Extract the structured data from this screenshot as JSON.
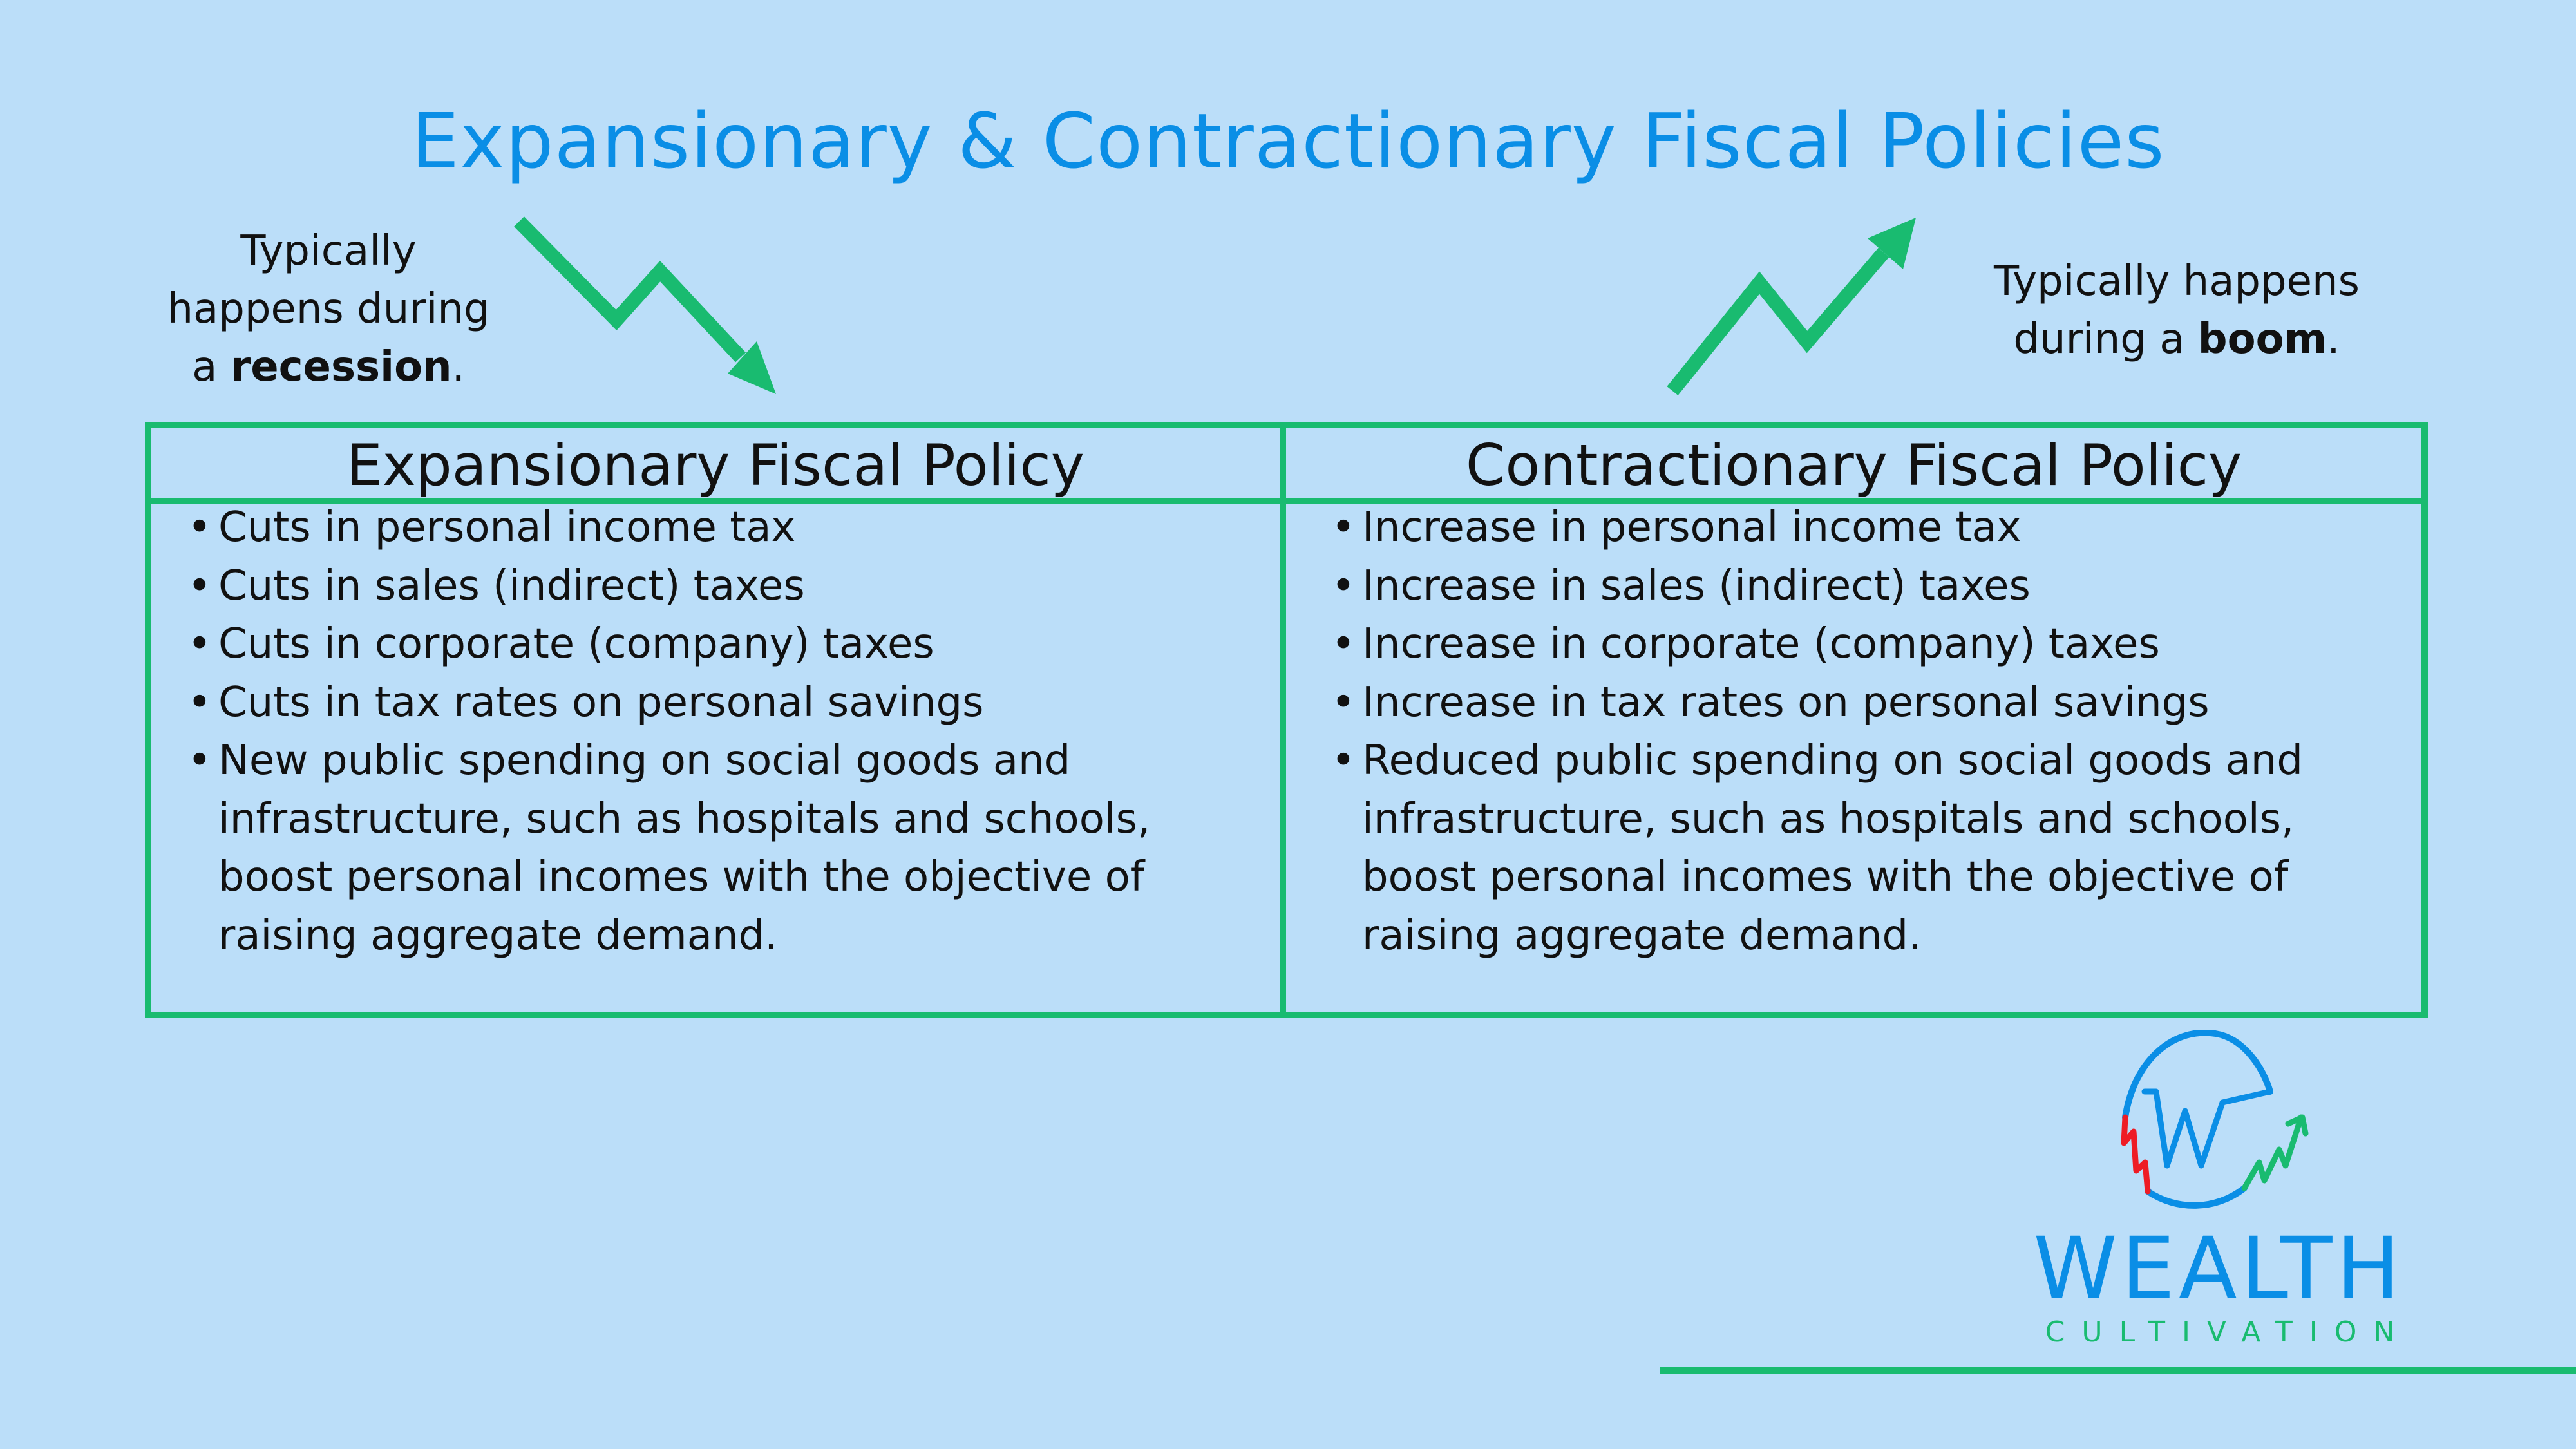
{
  "title": "Expansionary & Contractionary Fiscal Policies",
  "captions": {
    "left": {
      "line1": "Typically",
      "line2": "happens during",
      "line3_prefix": "a ",
      "line3_bold": "recession",
      "line3_suffix": "."
    },
    "right": {
      "line1": "Typically happens",
      "line2_prefix": "during a ",
      "line2_bold": "boom",
      "line2_suffix": "."
    }
  },
  "arrows": {
    "left": "trend-down-arrow-icon",
    "right": "trend-up-arrow-icon"
  },
  "table": {
    "columns": [
      {
        "header": "Expansionary Fiscal Policy",
        "items": [
          "Cuts in personal income tax",
          "Cuts in sales (indirect) taxes",
          "Cuts in corporate (company) taxes",
          "Cuts in tax rates on personal savings",
          "New public spending on social goods and infrastructure, such as hospitals and schools, boost personal incomes with the objective of raising aggregate demand."
        ]
      },
      {
        "header": "Contractionary Fiscal Policy",
        "items": [
          "Increase in personal income tax",
          "Increase in sales (indirect) taxes",
          "Increase in corporate (company) taxes",
          "Increase in tax rates on personal savings",
          "Reduced public spending on social goods and infrastructure, such as hospitals and schools, boost personal incomes with the objective of raising aggregate demand."
        ]
      }
    ]
  },
  "logo": {
    "wordmark": "WEALTH",
    "subtitle": "CULTIVATION"
  },
  "colors": {
    "background": "#bbdef9",
    "accent_green": "#19bb70",
    "brand_blue": "#0a8ee6",
    "logo_red": "#ee1c25"
  }
}
